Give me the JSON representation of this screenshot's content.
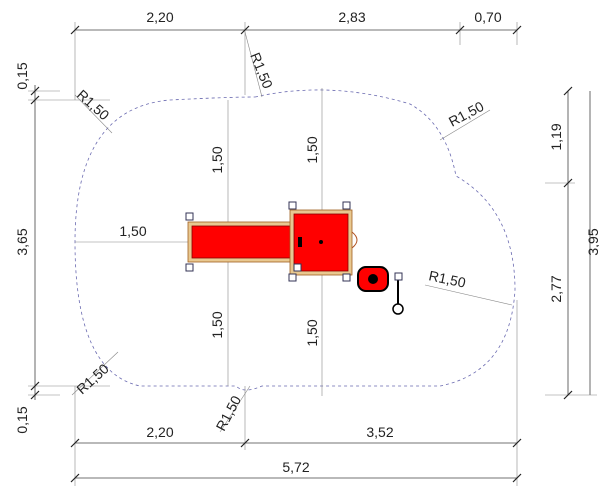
{
  "dimensions": {
    "top": [
      "2,20",
      "2,83",
      "0,70"
    ],
    "bottom": [
      "2,20",
      "3,52"
    ],
    "total": "5,72",
    "left": [
      "0,15",
      "3,65",
      "0,15"
    ],
    "right": [
      "1,19",
      "2,77",
      "3,95"
    ],
    "inner": [
      "1,50",
      "1,50",
      "1,50",
      "1,50",
      "1,50"
    ]
  },
  "radii": [
    "R1,50",
    "R1,50",
    "R1,50",
    "R1,50",
    "R1,50",
    "R1,50"
  ]
}
